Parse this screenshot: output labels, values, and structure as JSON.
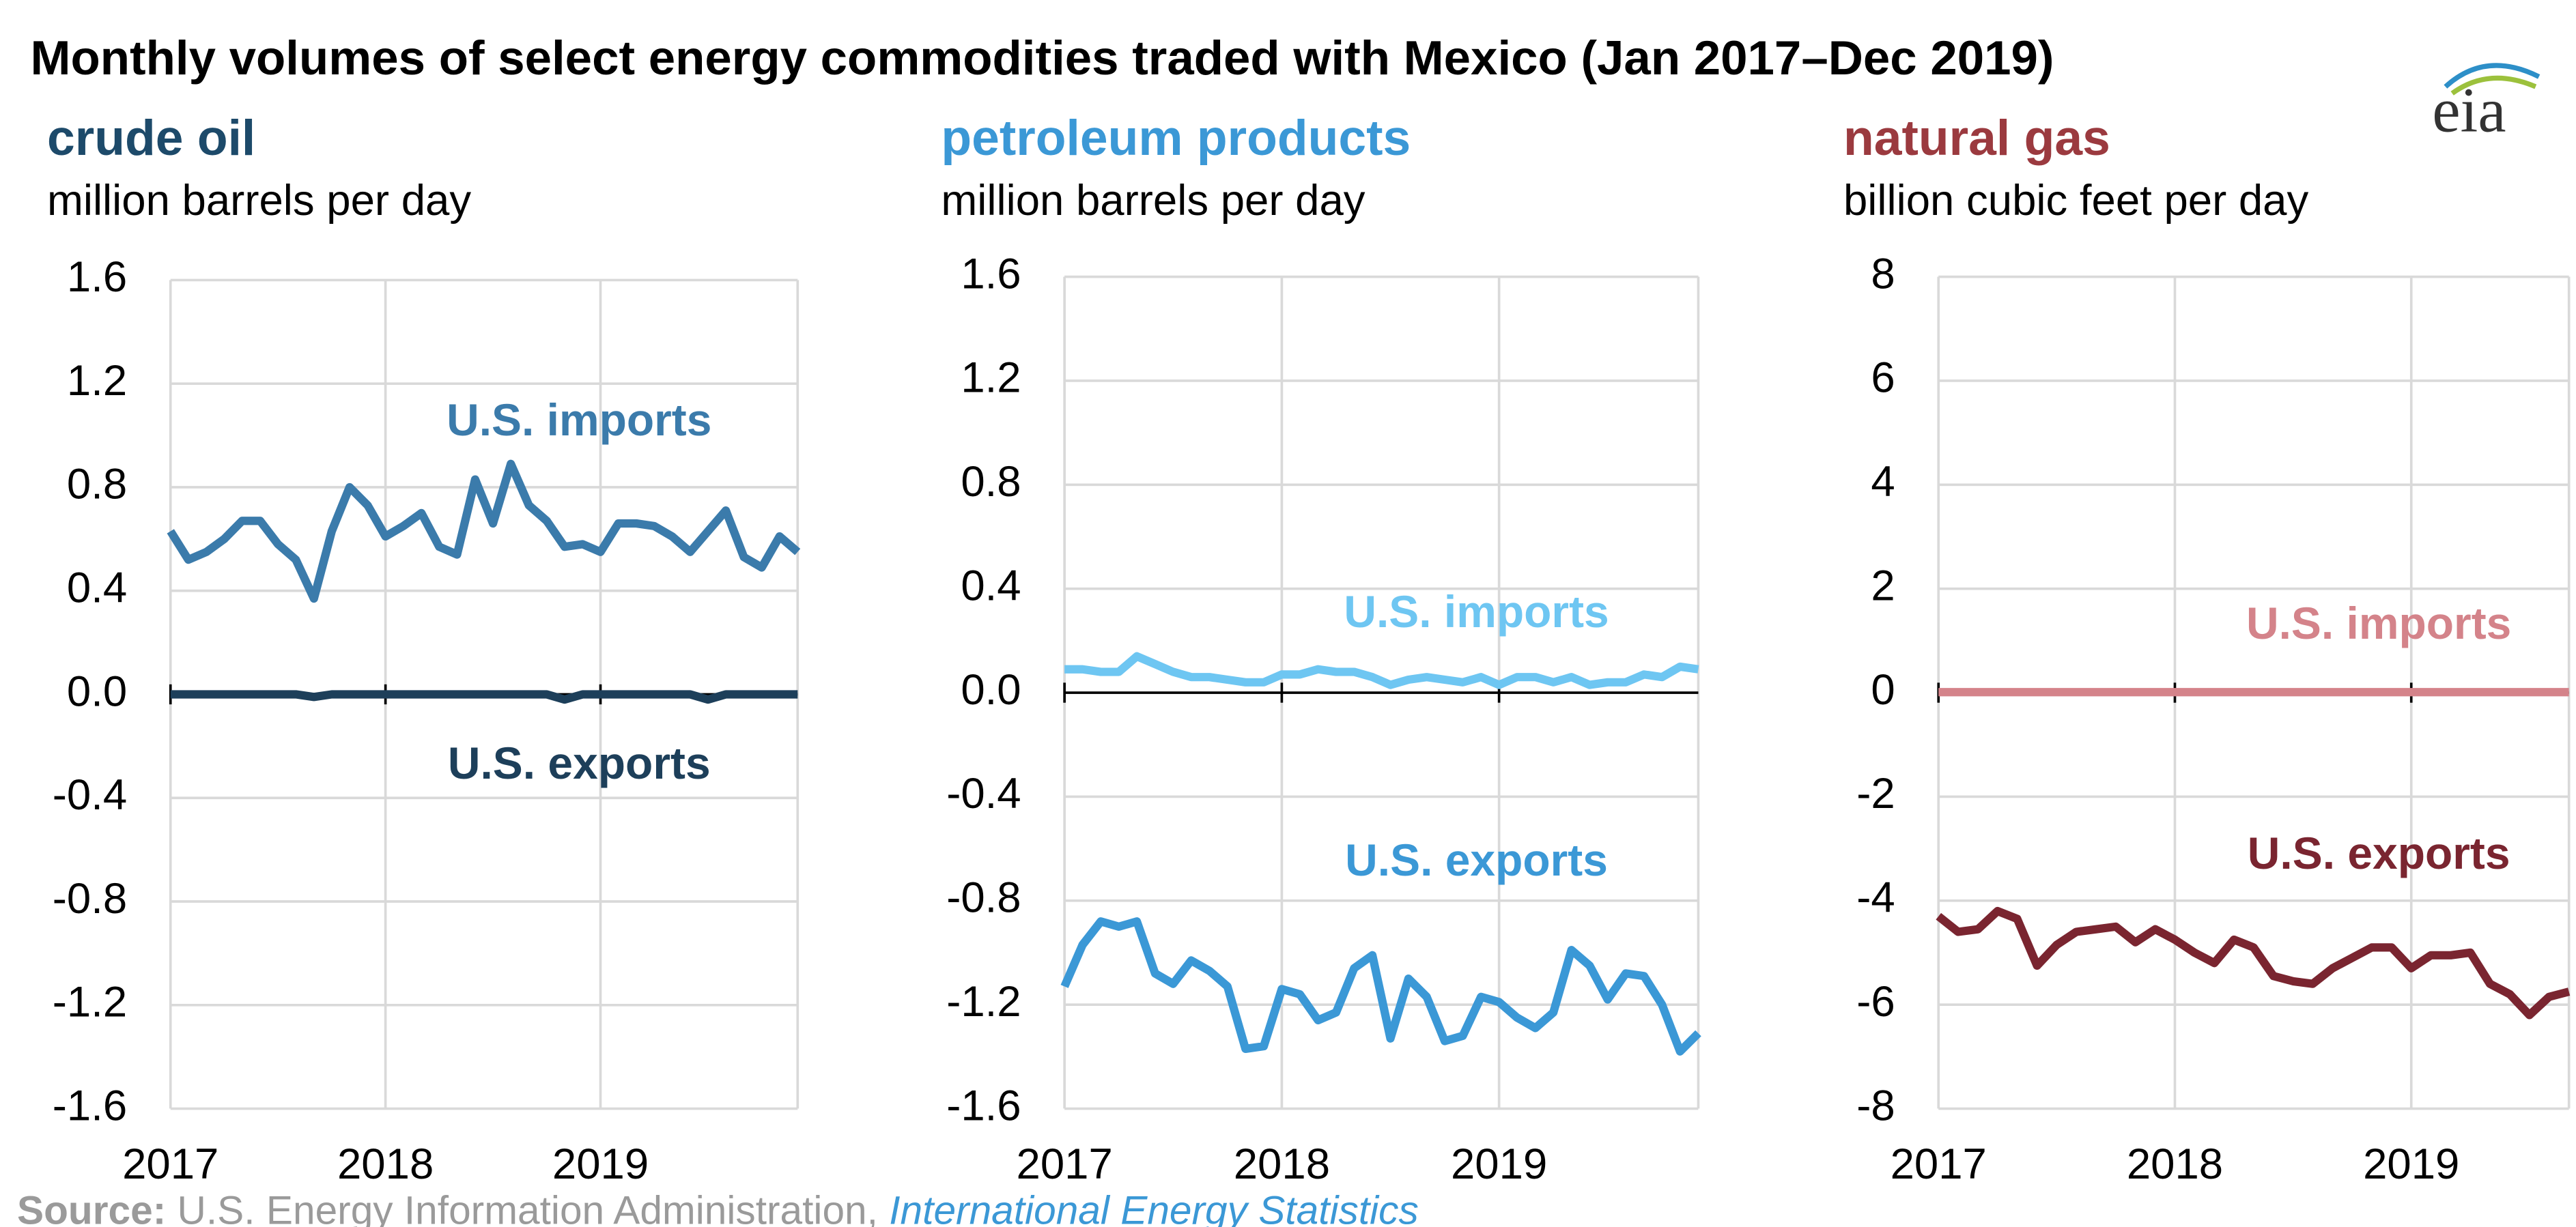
{
  "title": "Monthly volumes of select energy commodities traded with Mexico (Jan 2017–Dec 2019)",
  "logo": "eia",
  "source": {
    "label": "Source:",
    "text": "U.S. Energy Information Administration,",
    "link": "International Energy Statistics"
  },
  "chart_data": [
    {
      "type": "line",
      "title": "crude oil",
      "subtitle": "million barrels per day",
      "x": [
        2017,
        2017.083,
        2017.167,
        2017.25,
        2017.333,
        2017.417,
        2017.5,
        2017.583,
        2017.667,
        2017.75,
        2017.833,
        2017.917,
        2018,
        2018.083,
        2018.167,
        2018.25,
        2018.333,
        2018.417,
        2018.5,
        2018.583,
        2018.667,
        2018.75,
        2018.833,
        2018.917,
        2019,
        2019.083,
        2019.167,
        2019.25,
        2019.333,
        2019.417,
        2019.5,
        2019.583,
        2019.667,
        2019.75,
        2019.833,
        2019.917
      ],
      "xlim": [
        2017,
        2019.917
      ],
      "xticks": [
        2017,
        2018,
        2019
      ],
      "ylim": [
        -1.6,
        1.6
      ],
      "yticks": [
        1.6,
        1.2,
        0.8,
        0.4,
        {
          "value": 0,
          "label": "0.0"
        },
        -0.4,
        -0.8,
        -1.2,
        -1.6
      ],
      "grid": true,
      "title_color": "#1d4a6a",
      "series": [
        {
          "name": "U.S. imports",
          "color": "#3b7bab",
          "values": [
            0.63,
            0.52,
            0.55,
            0.6,
            0.67,
            0.67,
            0.58,
            0.52,
            0.37,
            0.63,
            0.8,
            0.73,
            0.61,
            0.65,
            0.7,
            0.57,
            0.54,
            0.83,
            0.66,
            0.89,
            0.73,
            0.67,
            0.57,
            0.58,
            0.55,
            0.66,
            0.66,
            0.65,
            0.61,
            0.55,
            0.63,
            0.71,
            0.53,
            0.49,
            0.61,
            0.55
          ]
        },
        {
          "name": "U.S. exports",
          "color": "#1d3f5a",
          "values": [
            0,
            0,
            0,
            0,
            0,
            0,
            0,
            0,
            -0.01,
            0,
            0,
            0,
            0,
            0,
            0,
            0,
            0,
            0,
            0,
            0,
            0,
            0,
            -0.02,
            0,
            0,
            0,
            0,
            0,
            0,
            0,
            -0.02,
            0,
            0,
            0,
            0,
            0
          ]
        }
      ]
    },
    {
      "type": "line",
      "title": "petroleum products",
      "subtitle": "million barrels per day",
      "x": [
        2017,
        2017.083,
        2017.167,
        2017.25,
        2017.333,
        2017.417,
        2017.5,
        2017.583,
        2017.667,
        2017.75,
        2017.833,
        2017.917,
        2018,
        2018.083,
        2018.167,
        2018.25,
        2018.333,
        2018.417,
        2018.5,
        2018.583,
        2018.667,
        2018.75,
        2018.833,
        2018.917,
        2019,
        2019.083,
        2019.167,
        2019.25,
        2019.333,
        2019.417,
        2019.5,
        2019.583,
        2019.667,
        2019.75,
        2019.833,
        2019.917
      ],
      "xlim": [
        2017,
        2019.917
      ],
      "xticks": [
        2017,
        2018,
        2019
      ],
      "ylim": [
        -1.6,
        1.6
      ],
      "yticks": [
        1.6,
        1.2,
        0.8,
        0.4,
        {
          "value": 0,
          "label": "0.0"
        },
        -0.4,
        -0.8,
        -1.2,
        -1.6
      ],
      "grid": true,
      "title_color": "#3b98d6",
      "series": [
        {
          "name": "U.S. imports",
          "color": "#6ec6f2",
          "values": [
            0.09,
            0.09,
            0.08,
            0.08,
            0.14,
            0.11,
            0.08,
            0.06,
            0.06,
            0.05,
            0.04,
            0.04,
            0.07,
            0.07,
            0.09,
            0.08,
            0.08,
            0.06,
            0.03,
            0.05,
            0.06,
            0.05,
            0.04,
            0.06,
            0.03,
            0.06,
            0.06,
            0.04,
            0.06,
            0.03,
            0.04,
            0.04,
            0.07,
            0.06,
            0.1,
            0.09
          ]
        },
        {
          "name": "U.S. exports",
          "color": "#3b98d6",
          "values": [
            -1.13,
            -0.97,
            -0.88,
            -0.9,
            -0.88,
            -1.08,
            -1.12,
            -1.03,
            -1.07,
            -1.13,
            -1.37,
            -1.36,
            -1.14,
            -1.16,
            -1.26,
            -1.23,
            -1.06,
            -1.01,
            -1.33,
            -1.1,
            -1.17,
            -1.34,
            -1.32,
            -1.17,
            -1.19,
            -1.25,
            -1.29,
            -1.23,
            -0.99,
            -1.05,
            -1.18,
            -1.08,
            -1.09,
            -1.2,
            -1.38,
            -1.31
          ]
        }
      ]
    },
    {
      "type": "line",
      "title": "natural gas",
      "subtitle": "billion cubic feet per day",
      "x": [
        2017,
        2017.083,
        2017.167,
        2017.25,
        2017.333,
        2017.417,
        2017.5,
        2017.583,
        2017.667,
        2017.75,
        2017.833,
        2017.917,
        2018,
        2018.083,
        2018.167,
        2018.25,
        2018.333,
        2018.417,
        2018.5,
        2018.583,
        2018.667,
        2018.75,
        2018.833,
        2018.917,
        2019,
        2019.083,
        2019.167,
        2019.25,
        2019.333,
        2019.417,
        2019.5,
        2019.583,
        2019.667
      ],
      "xlim": [
        2017,
        2019.667
      ],
      "xticks": [
        2017,
        2018,
        2019
      ],
      "ylim": [
        -8,
        8
      ],
      "yticks": [
        8,
        6,
        4,
        2,
        0,
        -2,
        -4,
        -6,
        -8
      ],
      "grid": true,
      "title_color": "#9b3a3f",
      "series": [
        {
          "name": "U.S. imports",
          "color": "#d4838a",
          "values": [
            0.01,
            0.01,
            0.01,
            0.01,
            0.01,
            0.01,
            0.01,
            0.01,
            0.01,
            0.01,
            0.01,
            0.01,
            0.01,
            0.01,
            0.01,
            0.01,
            0.01,
            0.01,
            0.01,
            0.01,
            0.01,
            0.01,
            0.01,
            0.01,
            0.01,
            0.01,
            0.01,
            0.01,
            0.01,
            0.01,
            0.01,
            0.01,
            0.01
          ]
        },
        {
          "name": "U.S. exports",
          "color": "#7a2530",
          "values": [
            -4.3,
            -4.6,
            -4.55,
            -4.2,
            -4.35,
            -5.25,
            -4.85,
            -4.6,
            -4.55,
            -4.5,
            -4.8,
            -4.55,
            -4.75,
            -5,
            -5.2,
            -4.75,
            -4.9,
            -5.45,
            -5.55,
            -5.6,
            -5.3,
            -5.1,
            -4.9,
            -4.9,
            -5.3,
            -5.05,
            -5.05,
            -5,
            -5.6,
            -5.8,
            -6.2,
            -5.85,
            -5.75
          ]
        }
      ]
    }
  ]
}
